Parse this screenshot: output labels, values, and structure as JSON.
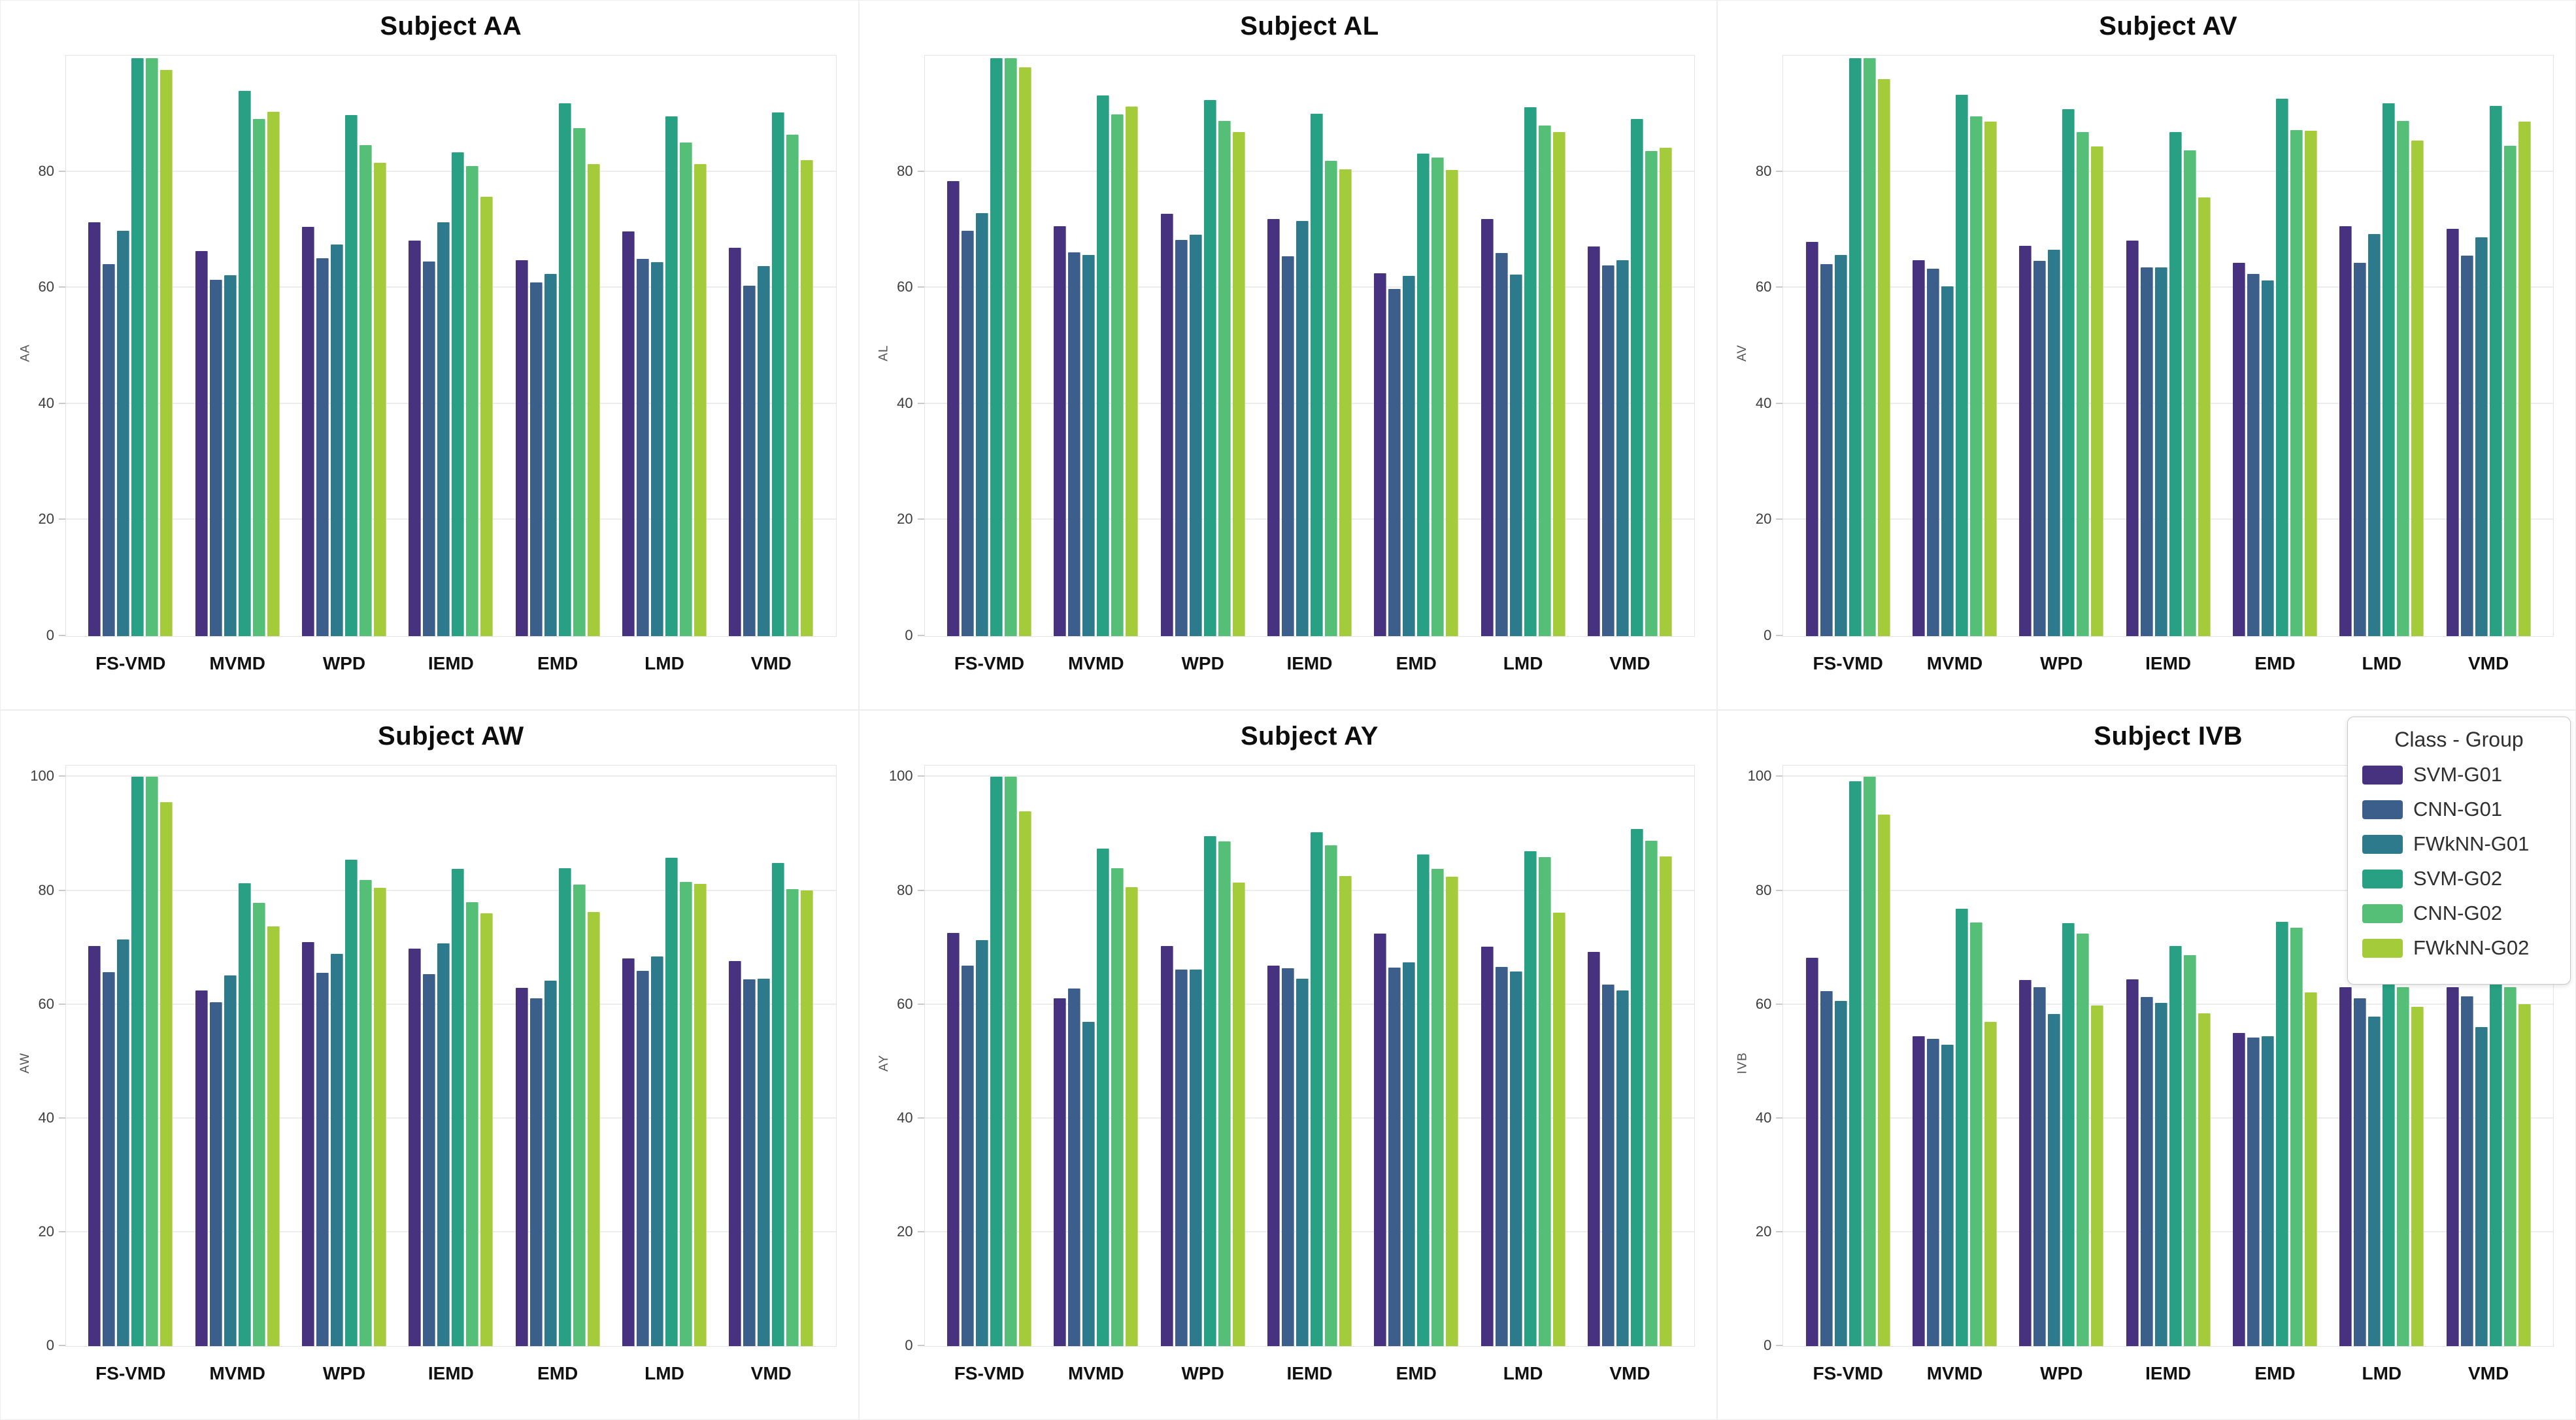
{
  "page_background": "#ffffff",
  "legend": {
    "title": "Class - Group",
    "items": [
      {
        "label": "SVM-G01",
        "color": "#46327e"
      },
      {
        "label": "CNN-G01",
        "color": "#3b5e8b"
      },
      {
        "label": "FWkNN-G01",
        "color": "#2d7a8c"
      },
      {
        "label": "SVM-G02",
        "color": "#27a083"
      },
      {
        "label": "CNN-G02",
        "color": "#55bf77"
      },
      {
        "label": "FWkNN-G02",
        "color": "#a3cb3a"
      }
    ]
  },
  "chart_data": [
    {
      "type": "bar",
      "title": "Subject AA",
      "ylabel": "AA",
      "ylim": [
        0,
        100
      ],
      "yticks": [
        0,
        20,
        40,
        60,
        80
      ],
      "grid": true,
      "legend_position": "none",
      "categories": [
        "FS-VMD",
        "MVMD",
        "WPD",
        "IEMD",
        "EMD",
        "LMD",
        "VMD"
      ],
      "series": [
        {
          "name": "SVM-G01",
          "values": [
            71.3,
            66.3,
            70.5,
            68.1,
            64.8,
            69.7,
            66.9
          ]
        },
        {
          "name": "CNN-G01",
          "values": [
            64.1,
            61.4,
            65.1,
            64.5,
            60.9,
            65.0,
            60.4
          ]
        },
        {
          "name": "FWkNN-G01",
          "values": [
            69.8,
            62.2,
            67.5,
            71.3,
            62.4,
            64.4,
            63.7
          ]
        },
        {
          "name": "SVM-G02",
          "values": [
            99.5,
            93.9,
            89.8,
            83.3,
            91.8,
            89.5,
            90.2
          ]
        },
        {
          "name": "CNN-G02",
          "values": [
            99.5,
            89.1,
            84.6,
            81.0,
            87.5,
            85.0,
            86.4
          ]
        },
        {
          "name": "FWkNN-G02",
          "values": [
            97.5,
            90.3,
            81.5,
            75.7,
            81.3,
            81.3,
            82.0
          ]
        }
      ]
    },
    {
      "type": "bar",
      "title": "Subject AL",
      "ylabel": "AL",
      "ylim": [
        0,
        100
      ],
      "yticks": [
        0,
        20,
        40,
        60,
        80
      ],
      "grid": true,
      "legend_position": "none",
      "categories": [
        "FS-VMD",
        "MVMD",
        "WPD",
        "IEMD",
        "EMD",
        "LMD",
        "VMD"
      ],
      "series": [
        {
          "name": "SVM-G01",
          "values": [
            78.4,
            70.6,
            72.7,
            71.8,
            62.5,
            71.8,
            67.1
          ]
        },
        {
          "name": "CNN-G01",
          "values": [
            69.8,
            66.1,
            68.2,
            65.4,
            59.8,
            66.0,
            63.9
          ]
        },
        {
          "name": "FWkNN-G01",
          "values": [
            72.9,
            65.6,
            69.1,
            71.5,
            62.0,
            62.3,
            64.7
          ]
        },
        {
          "name": "SVM-G02",
          "values": [
            99.5,
            93.1,
            92.3,
            90.0,
            83.1,
            91.1,
            89.1
          ]
        },
        {
          "name": "CNN-G02",
          "values": [
            99.5,
            89.9,
            88.7,
            81.9,
            82.4,
            87.9,
            83.6
          ]
        },
        {
          "name": "FWkNN-G02",
          "values": [
            98.0,
            91.2,
            86.8,
            80.4,
            80.3,
            86.8,
            84.1
          ]
        }
      ]
    },
    {
      "type": "bar",
      "title": "Subject AV",
      "ylabel": "AV",
      "ylim": [
        0,
        100
      ],
      "yticks": [
        0,
        20,
        40,
        60,
        80
      ],
      "grid": true,
      "legend_position": "none",
      "categories": [
        "FS-VMD",
        "MVMD",
        "WPD",
        "IEMD",
        "EMD",
        "LMD",
        "VMD"
      ],
      "series": [
        {
          "name": "SVM-G01",
          "values": [
            67.9,
            64.7,
            67.2,
            68.1,
            64.3,
            70.6,
            70.2
          ]
        },
        {
          "name": "CNN-G01",
          "values": [
            64.1,
            63.3,
            64.6,
            63.5,
            62.4,
            64.3,
            65.5
          ]
        },
        {
          "name": "FWkNN-G01",
          "values": [
            65.7,
            60.3,
            66.5,
            63.5,
            61.3,
            69.3,
            68.7
          ]
        },
        {
          "name": "SVM-G02",
          "values": [
            99.5,
            93.3,
            90.8,
            86.8,
            92.6,
            91.8,
            91.3
          ]
        },
        {
          "name": "CNN-G02",
          "values": [
            99.5,
            89.5,
            86.8,
            83.7,
            87.2,
            88.7,
            84.5
          ]
        },
        {
          "name": "FWkNN-G02",
          "values": [
            96.0,
            88.6,
            84.4,
            75.6,
            87.0,
            85.4,
            88.6
          ]
        }
      ]
    },
    {
      "type": "bar",
      "title": "Subject AW",
      "ylabel": "AW",
      "ylim": [
        0,
        102
      ],
      "yticks": [
        0,
        20,
        40,
        60,
        80,
        100
      ],
      "grid": true,
      "legend_position": "none",
      "categories": [
        "FS-VMD",
        "MVMD",
        "WPD",
        "IEMD",
        "EMD",
        "LMD",
        "VMD"
      ],
      "series": [
        {
          "name": "SVM-G01",
          "values": [
            70.3,
            62.5,
            71.0,
            69.8,
            62.9,
            68.1,
            67.6
          ]
        },
        {
          "name": "CNN-G01",
          "values": [
            65.7,
            60.4,
            65.6,
            65.4,
            61.1,
            65.9,
            64.4
          ]
        },
        {
          "name": "FWkNN-G01",
          "values": [
            71.5,
            65.1,
            68.9,
            70.8,
            64.2,
            68.5,
            64.5
          ]
        },
        {
          "name": "SVM-G02",
          "values": [
            100.0,
            81.3,
            85.5,
            83.8,
            84.0,
            85.8,
            84.9
          ]
        },
        {
          "name": "CNN-G02",
          "values": [
            100.0,
            77.9,
            81.9,
            78.0,
            81.1,
            81.6,
            80.3
          ]
        },
        {
          "name": "FWkNN-G02",
          "values": [
            95.6,
            73.7,
            80.5,
            76.0,
            76.3,
            81.2,
            80.1
          ]
        }
      ]
    },
    {
      "type": "bar",
      "title": "Subject AY",
      "ylabel": "AY",
      "ylim": [
        0,
        102
      ],
      "yticks": [
        0,
        20,
        40,
        60,
        80,
        100
      ],
      "grid": true,
      "legend_position": "none",
      "categories": [
        "FS-VMD",
        "MVMD",
        "WPD",
        "IEMD",
        "EMD",
        "LMD",
        "VMD"
      ],
      "series": [
        {
          "name": "SVM-G01",
          "values": [
            72.6,
            61.1,
            70.3,
            66.9,
            72.5,
            70.2,
            69.3
          ]
        },
        {
          "name": "CNN-G01",
          "values": [
            66.8,
            62.8,
            66.2,
            66.4,
            66.5,
            66.6,
            63.5
          ]
        },
        {
          "name": "FWkNN-G01",
          "values": [
            71.3,
            57.0,
            66.2,
            64.6,
            67.4,
            65.8,
            62.5
          ]
        },
        {
          "name": "SVM-G02",
          "values": [
            100.0,
            87.4,
            89.6,
            90.3,
            86.4,
            87.0,
            90.9
          ]
        },
        {
          "name": "CNN-G02",
          "values": [
            100.0,
            84.0,
            88.7,
            88.0,
            83.8,
            85.9,
            88.8
          ]
        },
        {
          "name": "FWkNN-G02",
          "values": [
            94.0,
            80.6,
            81.4,
            82.6,
            82.5,
            76.1,
            86.0
          ]
        }
      ]
    },
    {
      "type": "bar",
      "title": "Subject IVB",
      "ylabel": "IVB",
      "ylim": [
        0,
        102
      ],
      "yticks": [
        0,
        20,
        40,
        60,
        80,
        100
      ],
      "grid": true,
      "legend_position": "top-right",
      "categories": [
        "FS-VMD",
        "MVMD",
        "WPD",
        "IEMD",
        "EMD",
        "LMD",
        "VMD"
      ],
      "series": [
        {
          "name": "SVM-G01",
          "values": [
            68.2,
            54.5,
            64.3,
            64.4,
            55.0,
            63.1,
            63.1
          ]
        },
        {
          "name": "CNN-G01",
          "values": [
            62.4,
            54.0,
            63.1,
            61.3,
            54.2,
            61.1,
            61.5
          ]
        },
        {
          "name": "FWkNN-G01",
          "values": [
            60.6,
            53.0,
            58.3,
            60.3,
            54.5,
            57.9,
            56.0
          ]
        },
        {
          "name": "SVM-G02",
          "values": [
            99.3,
            76.8,
            74.3,
            70.3,
            74.5,
            64.4,
            65.9
          ]
        },
        {
          "name": "CNN-G02",
          "values": [
            100.0,
            74.4,
            72.5,
            68.7,
            73.5,
            63.1,
            63.1
          ]
        },
        {
          "name": "FWkNN-G02",
          "values": [
            93.4,
            57.0,
            59.8,
            58.5,
            62.1,
            59.6,
            60.1
          ]
        }
      ]
    }
  ]
}
